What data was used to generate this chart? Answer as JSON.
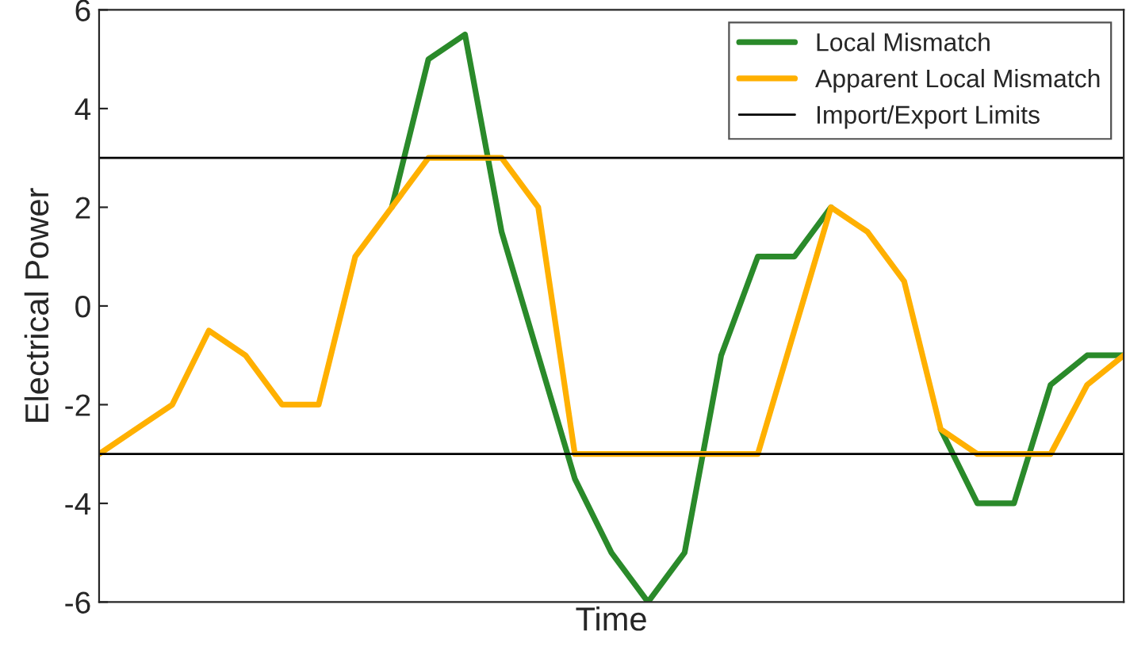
{
  "chart_data": {
    "type": "line",
    "xlabel": "Time",
    "ylabel": "Electrical Power",
    "categories": [
      null,
      null,
      null,
      null,
      null,
      null,
      null,
      null,
      null,
      null,
      null,
      null,
      null,
      null,
      null,
      null,
      null,
      null,
      null,
      null,
      null,
      null,
      null,
      null,
      null,
      null,
      null,
      null,
      null
    ],
    "series": [
      {
        "name": "Local Mismatch",
        "color": "#2a8a2a",
        "values": [
          null,
          null,
          null,
          null,
          null,
          null,
          null,
          null,
          2,
          5,
          5.5,
          1.5,
          -1,
          -3.5,
          -5,
          -6,
          -5,
          -1,
          1,
          1,
          2,
          null,
          null,
          -2.5,
          -4,
          -4,
          -1.6,
          -1,
          -1
        ]
      },
      {
        "name": "Apparent Local Mismatch",
        "color": "#ffb000",
        "values": [
          -3,
          -2.5,
          -2,
          -0.5,
          -1,
          -2,
          -2,
          1,
          2,
          3,
          3,
          3,
          2,
          -3,
          -3,
          -3,
          -3,
          -3,
          -3,
          -0.5,
          2,
          1.5,
          0.5,
          -2.5,
          -3,
          -3,
          -3,
          -1.6,
          -1
        ]
      }
    ],
    "ref_lines": [
      {
        "axis": "y",
        "value": 3,
        "label": "Import/Export Limits",
        "color": "#000000"
      },
      {
        "axis": "y",
        "value": -3,
        "color": "#000000"
      }
    ],
    "ylim": [
      -6,
      6
    ],
    "yticks": [
      -6,
      -4,
      -2,
      0,
      2,
      4,
      6
    ],
    "grid": false,
    "legend": "top right",
    "line_style": "solid",
    "marker": "none",
    "tick_labels": "y"
  }
}
